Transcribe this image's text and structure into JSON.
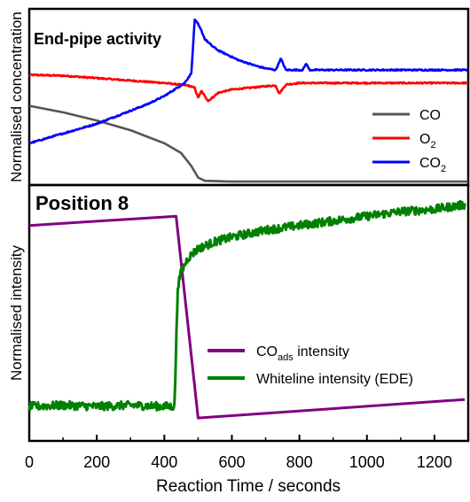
{
  "colors": {
    "co": "#555555",
    "o2": "#ff0000",
    "co2": "#0000ff",
    "coads": "#800080",
    "whiteline": "#008000",
    "frame": "#000000"
  },
  "chart_data": [
    {
      "type": "line",
      "panel_title": "End-pipe activity",
      "ylabel": "Normalised concentration",
      "xlim": [
        0,
        1300
      ],
      "ylim": [
        0,
        1
      ],
      "y_ticks_shown": false,
      "legend_position": "bottom-right",
      "series": [
        {
          "name": "CO",
          "name_main": "CO",
          "name_sub": "",
          "color": "#555555",
          "x": [
            0,
            100,
            200,
            300,
            350,
            400,
            450,
            480,
            500,
            520,
            600,
            700,
            800,
            1000,
            1300
          ],
          "y": [
            0.47,
            0.43,
            0.38,
            0.32,
            0.28,
            0.24,
            0.18,
            0.1,
            0.03,
            0.01,
            0.005,
            0.005,
            0.005,
            0.005,
            0.005
          ]
        },
        {
          "name": "O2",
          "name_main": "O",
          "name_sub": "2",
          "color": "#ff0000",
          "x": [
            0,
            100,
            200,
            300,
            400,
            470,
            490,
            500,
            510,
            530,
            560,
            600,
            700,
            730,
            740,
            760,
            800,
            900,
            1000,
            1100,
            1200,
            1300
          ],
          "y": [
            0.66,
            0.655,
            0.64,
            0.625,
            0.61,
            0.595,
            0.58,
            0.52,
            0.56,
            0.5,
            0.55,
            0.57,
            0.59,
            0.595,
            0.545,
            0.6,
            0.61,
            0.61,
            0.61,
            0.61,
            0.61,
            0.61
          ],
          "noise": 0.004
        },
        {
          "name": "CO2",
          "name_main": "CO",
          "name_sub": "2",
          "color": "#0000ff",
          "x": [
            0,
            50,
            100,
            150,
            200,
            250,
            300,
            350,
            400,
            430,
            460,
            480,
            490,
            500,
            510,
            520,
            540,
            560,
            580,
            600,
            620,
            650,
            680,
            700,
            730,
            745,
            760,
            780,
            810,
            820,
            830,
            850,
            880,
            900,
            950,
            1000,
            1100,
            1200,
            1300
          ],
          "y": [
            0.24,
            0.27,
            0.3,
            0.33,
            0.36,
            0.4,
            0.44,
            0.48,
            0.53,
            0.57,
            0.61,
            0.67,
            1.0,
            0.97,
            0.93,
            0.88,
            0.84,
            0.81,
            0.79,
            0.77,
            0.75,
            0.73,
            0.71,
            0.7,
            0.69,
            0.76,
            0.69,
            0.69,
            0.69,
            0.73,
            0.69,
            0.69,
            0.69,
            0.69,
            0.69,
            0.69,
            0.69,
            0.69,
            0.69
          ],
          "noise": 0.004
        }
      ]
    },
    {
      "type": "line",
      "panel_title": "Position 8",
      "ylabel": "Normalised intensity",
      "xlabel": "Reaction Time / seconds",
      "xlim": [
        0,
        1300
      ],
      "x_ticks": [
        0,
        200,
        400,
        600,
        800,
        1000,
        1200
      ],
      "ylim": [
        0,
        1
      ],
      "y_ticks_shown": false,
      "legend_position": "lower-right",
      "series": [
        {
          "name": "COads intensity",
          "name_main": "CO",
          "name_sub": "ads",
          "name_rest": " intensity",
          "color": "#800080",
          "x": [
            0,
            435,
            500,
            1290
          ],
          "y": [
            0.86,
            0.9,
            0.03,
            0.11
          ]
        },
        {
          "name": "Whiteline intensity (EDE)",
          "name_main": "Whiteline intensity (EDE)",
          "name_sub": "",
          "color": "#008000",
          "x": [
            0,
            100,
            200,
            300,
            400,
            430,
            440,
            450,
            470,
            500,
            550,
            600,
            700,
            800,
            900,
            1000,
            1100,
            1200,
            1290
          ],
          "y": [
            0.08,
            0.085,
            0.08,
            0.085,
            0.08,
            0.08,
            0.6,
            0.66,
            0.72,
            0.76,
            0.79,
            0.81,
            0.84,
            0.86,
            0.88,
            0.9,
            0.92,
            0.93,
            0.95
          ],
          "noise": 0.018
        }
      ]
    }
  ]
}
